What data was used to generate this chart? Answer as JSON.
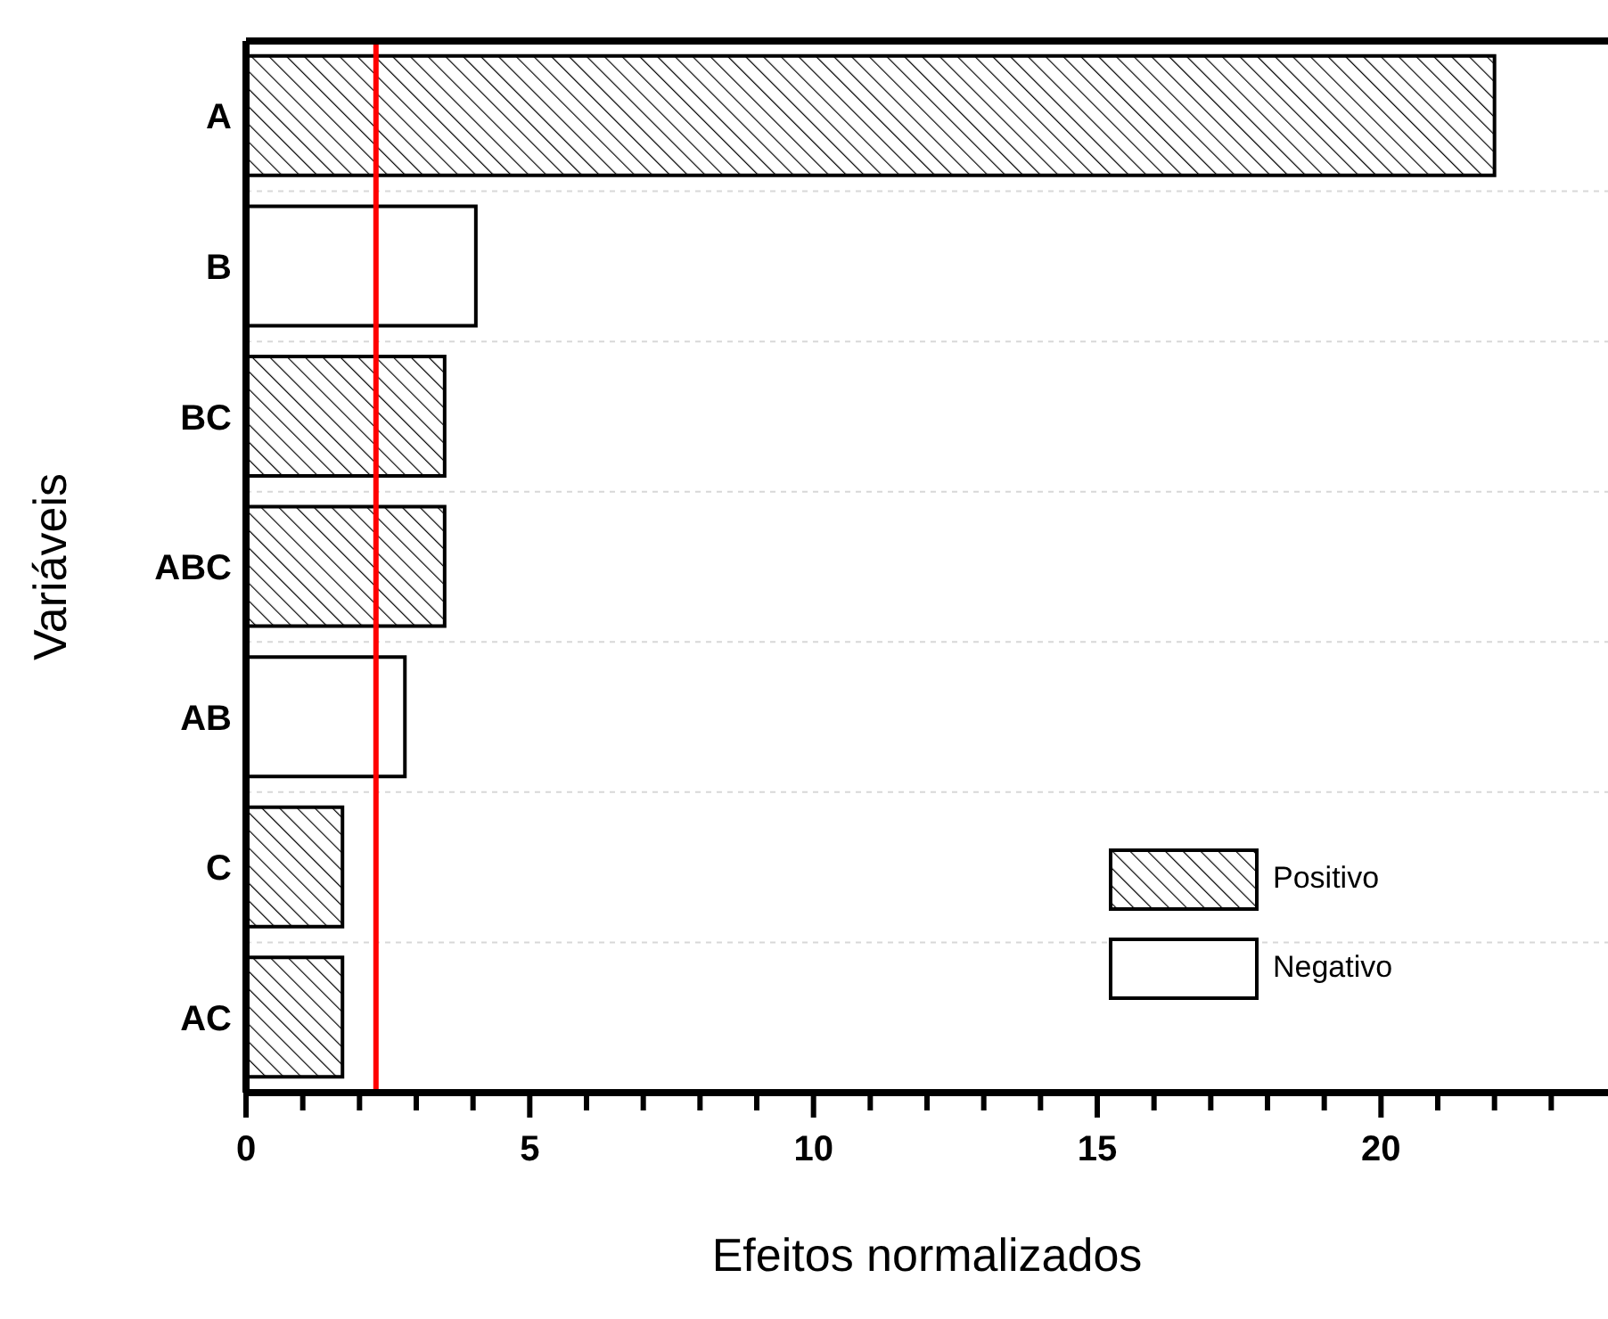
{
  "chart_data": {
    "type": "bar",
    "orientation": "horizontal",
    "stacked": true,
    "xlabel": "Efeitos normalizados",
    "ylabel": "Variáveis",
    "categories": [
      "A",
      "B",
      "BC",
      "ABC",
      "AB",
      "C",
      "AC"
    ],
    "series": [
      {
        "name": "Positivo",
        "color": "#000000",
        "values": [
          22.0,
          null,
          3.5,
          3.5,
          null,
          1.7,
          1.7
        ]
      },
      {
        "name": "Negativo",
        "color": "#ffffff",
        "values": [
          null,
          4.05,
          null,
          null,
          2.8,
          null,
          null
        ]
      }
    ],
    "xlim": [
      0,
      24
    ],
    "xticks": [
      0,
      {
        "value": 1,
        "label": null
      },
      {
        "value": 2,
        "label": null
      },
      {
        "value": 3,
        "label": null
      },
      {
        "value": 4,
        "label": null
      },
      5,
      {
        "value": 6,
        "label": null
      },
      {
        "value": 7,
        "label": null
      },
      {
        "value": 8,
        "label": null
      },
      {
        "value": 9,
        "label": null
      },
      10,
      {
        "value": 11,
        "label": null
      },
      {
        "value": 12,
        "label": null
      },
      {
        "value": 13,
        "label": null
      },
      {
        "value": 14,
        "label": null
      },
      15,
      {
        "value": 16,
        "label": null
      },
      {
        "value": 17,
        "label": null
      },
      {
        "value": 18,
        "label": null
      },
      {
        "value": 19,
        "label": null
      },
      20,
      {
        "value": 21,
        "label": null
      },
      {
        "value": 22,
        "label": null
      },
      {
        "value": 23,
        "label": null
      }
    ],
    "ref_lines": [
      {
        "axis": "x",
        "value": 2.29,
        "color": "#ff0000"
      }
    ],
    "grid": "y",
    "legend": "bottom right"
  }
}
